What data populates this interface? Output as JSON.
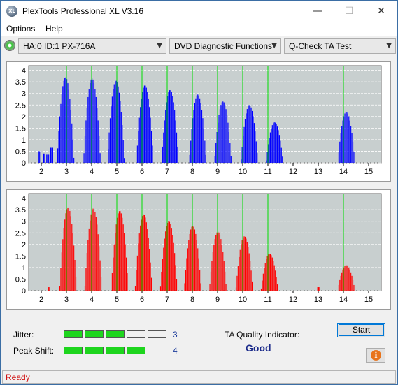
{
  "window": {
    "title": "PlexTools Professional XL V3.16",
    "icon_text": "XL",
    "min_glyph": "—",
    "max_glyph": "☐",
    "close_glyph": "✕"
  },
  "menu": {
    "options": "Options",
    "help": "Help"
  },
  "toolbar": {
    "drive": "HA:0 ID:1  PX-716A",
    "function": "DVD Diagnostic Functions",
    "test": "Q-Check TA Test",
    "arrow": "▼"
  },
  "charts": {
    "x_ticks": [
      "2",
      "3",
      "4",
      "5",
      "6",
      "7",
      "8",
      "9",
      "10",
      "11",
      "12",
      "13",
      "14",
      "15"
    ],
    "y_ticks": [
      "4",
      "3.5",
      "3",
      "2.5",
      "2",
      "1.5",
      "1",
      "0.5",
      "0"
    ],
    "xlim": [
      1.5,
      15.5
    ],
    "ylim": [
      0,
      4.2
    ],
    "green_lines": [
      3,
      4,
      5,
      6,
      7,
      8,
      9,
      10,
      11,
      14
    ],
    "colors": {
      "top": "#0000ff",
      "bottom": "#ff0000",
      "marker": "#00dd00",
      "plot_bg": "#c8cfcf"
    }
  },
  "chart_data": [
    {
      "type": "histogram",
      "series": [
        {
          "name": "",
          "color": "#0000ff"
        }
      ],
      "peaks": [
        {
          "x": 2.95,
          "y": 3.7
        },
        {
          "x": 4.0,
          "y": 3.65
        },
        {
          "x": 4.95,
          "y": 3.55
        },
        {
          "x": 6.1,
          "y": 3.35
        },
        {
          "x": 7.1,
          "y": 3.15
        },
        {
          "x": 8.2,
          "y": 2.95
        },
        {
          "x": 9.2,
          "y": 2.65
        },
        {
          "x": 10.25,
          "y": 2.5
        },
        {
          "x": 11.25,
          "y": 1.75
        },
        {
          "x": 14.1,
          "y": 2.2
        }
      ],
      "low_values": [
        {
          "x": 1.9,
          "y": 0.5
        },
        {
          "x": 2.1,
          "y": 0.4
        },
        {
          "x": 2.25,
          "y": 0.35
        },
        {
          "x": 2.4,
          "y": 0.65
        }
      ],
      "xlim": [
        1.5,
        15.5
      ],
      "ylim": [
        0,
        4.2
      ]
    },
    {
      "type": "histogram",
      "series": [
        {
          "name": "",
          "color": "#ff0000"
        }
      ],
      "peaks": [
        {
          "x": 3.05,
          "y": 3.6
        },
        {
          "x": 4.05,
          "y": 3.55
        },
        {
          "x": 5.1,
          "y": 3.45
        },
        {
          "x": 6.05,
          "y": 3.3
        },
        {
          "x": 7.05,
          "y": 3.0
        },
        {
          "x": 8.0,
          "y": 2.8
        },
        {
          "x": 9.0,
          "y": 2.55
        },
        {
          "x": 10.05,
          "y": 2.35
        },
        {
          "x": 11.05,
          "y": 1.6
        },
        {
          "x": 14.1,
          "y": 1.1
        }
      ],
      "low_values": [
        {
          "x": 2.3,
          "y": 0.15
        },
        {
          "x": 13.0,
          "y": 0.15
        }
      ],
      "xlim": [
        1.5,
        15.5
      ],
      "ylim": [
        0,
        4.2
      ]
    }
  ],
  "bottom": {
    "jitter_label": "Jitter:",
    "jitter_value": "3",
    "jitter_level": 3,
    "peak_label": "Peak Shift:",
    "peak_value": "4",
    "peak_level": 4,
    "segments_total": 5,
    "ta_label": "TA Quality Indicator:",
    "ta_value": "Good",
    "start_label": "Start",
    "info_glyph": "i"
  },
  "status": {
    "text": "Ready"
  }
}
